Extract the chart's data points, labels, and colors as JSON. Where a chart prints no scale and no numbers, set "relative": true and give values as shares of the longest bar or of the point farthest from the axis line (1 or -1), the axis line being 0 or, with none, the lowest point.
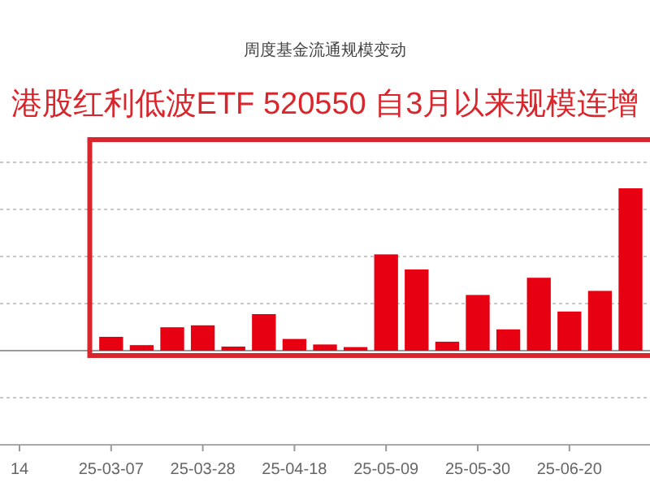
{
  "chart_data": {
    "type": "bar",
    "title": "周度基金流通规模变动",
    "subtitle": "港股红利低波ETF 520550 自3月以来规模连增",
    "categories": [
      "14",
      null,
      null,
      "25-03-07",
      null,
      null,
      "25-03-28",
      null,
      null,
      "25-04-18",
      null,
      null,
      "25-05-09",
      null,
      null,
      "25-05-30",
      null,
      null,
      "25-06-20",
      null,
      null
    ],
    "values": [
      null,
      null,
      null,
      0.085,
      0.034,
      0.144,
      0.156,
      0.025,
      0.225,
      0.072,
      0.038,
      0.022,
      0.593,
      0.5,
      0.055,
      0.343,
      0.131,
      0.449,
      0.241,
      0.368,
      1
    ],
    "color": "#e60012",
    "relative": true,
    "grid": "y"
  }
}
